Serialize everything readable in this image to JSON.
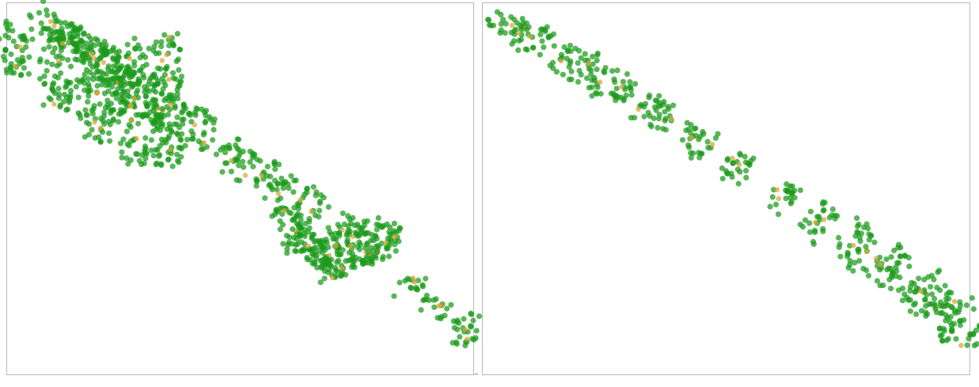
{
  "colors": {
    "point": "#1a9a1a",
    "core": "#d9a53a",
    "border": "#b9b9b9",
    "background": "#ffffff"
  },
  "marker_glyph": "^",
  "chart_data": [
    {
      "type": "scatter",
      "title": "",
      "xlabel": "",
      "ylabel": "",
      "grid": false,
      "legend": "none",
      "xlim": [
        0,
        1
      ],
      "ylim": [
        0,
        1
      ],
      "series": [
        {
          "values": [
            [
              0.06,
              0.02,
              0.14,
              0.1,
              0.07
            ],
            [
              0.1,
              0.06,
              0.21,
              0.17,
              0.08
            ],
            [
              0.15,
              0.1,
              0.25,
              0.22,
              0.08
            ],
            [
              0.22,
              0.18,
              0.29,
              0.26,
              0.09
            ],
            [
              0.3,
              0.25,
              0.37,
              0.33,
              0.1
            ],
            [
              0.38,
              0.31,
              0.44,
              0.38,
              0.1
            ],
            [
              0.46,
              0.39,
              0.52,
              0.46,
              0.1
            ],
            [
              0.54,
              0.45,
              0.6,
              0.52,
              0.1
            ],
            [
              0.62,
              0.52,
              0.67,
              0.58,
              0.1
            ],
            [
              0.7,
              0.58,
              0.74,
              0.64,
              0.1
            ],
            [
              0.78,
              0.66,
              0.8,
              0.7,
              0.1
            ],
            [
              0.86,
              0.74,
              0.87,
              0.78,
              0.1
            ],
            [
              0.93,
              0.8,
              0.92,
              0.85,
              0.09
            ],
            [
              0.98,
              0.83,
              0.98,
              0.92,
              0.08
            ]
          ]
        }
      ],
      "branches": [
        [
          0.01,
          0.2,
          0.03,
          0.06
        ],
        [
          0.1,
          0.28,
          0.12,
          0.08
        ],
        [
          0.2,
          0.38,
          0.18,
          0.09
        ],
        [
          0.28,
          0.44,
          0.26,
          0.1
        ],
        [
          0.35,
          0.44,
          0.34,
          0.09
        ]
      ],
      "bulge": [
        [
          0.7,
          0.74,
          0.58,
          0.55,
          0.07
        ],
        [
          0.74,
          0.72,
          0.6,
          0.62,
          0.08
        ],
        [
          0.8,
          0.66,
          0.68,
          0.66,
          0.09
        ],
        [
          0.84,
          0.64,
          0.76,
          0.62,
          0.1
        ]
      ]
    },
    {
      "type": "scatter",
      "title": "",
      "xlabel": "",
      "ylabel": "",
      "grid": false,
      "legend": "none",
      "xlim": [
        0,
        1
      ],
      "ylim": [
        0,
        1
      ],
      "series": [
        {
          "values": [
            [
              0.01,
              0.04,
              0.09,
              0.07,
              0.06
            ],
            [
              0.07,
              0.08,
              0.14,
              0.12,
              0.08
            ],
            [
              0.14,
              0.14,
              0.23,
              0.18,
              0.09
            ],
            [
              0.22,
              0.2,
              0.31,
              0.24,
              0.09
            ],
            [
              0.31,
              0.27,
              0.39,
              0.31,
              0.09
            ],
            [
              0.41,
              0.35,
              0.47,
              0.39,
              0.09
            ],
            [
              0.5,
              0.42,
              0.55,
              0.46,
              0.09
            ],
            [
              0.59,
              0.5,
              0.63,
              0.54,
              0.09
            ],
            [
              0.67,
              0.56,
              0.71,
              0.61,
              0.1
            ],
            [
              0.74,
              0.62,
              0.79,
              0.68,
              0.11
            ],
            [
              0.81,
              0.68,
              0.86,
              0.74,
              0.12
            ],
            [
              0.89,
              0.74,
              0.93,
              0.84,
              0.13
            ],
            [
              0.97,
              0.8,
              0.99,
              0.92,
              0.12
            ]
          ]
        }
      ],
      "branches": [],
      "bulge": []
    }
  ]
}
